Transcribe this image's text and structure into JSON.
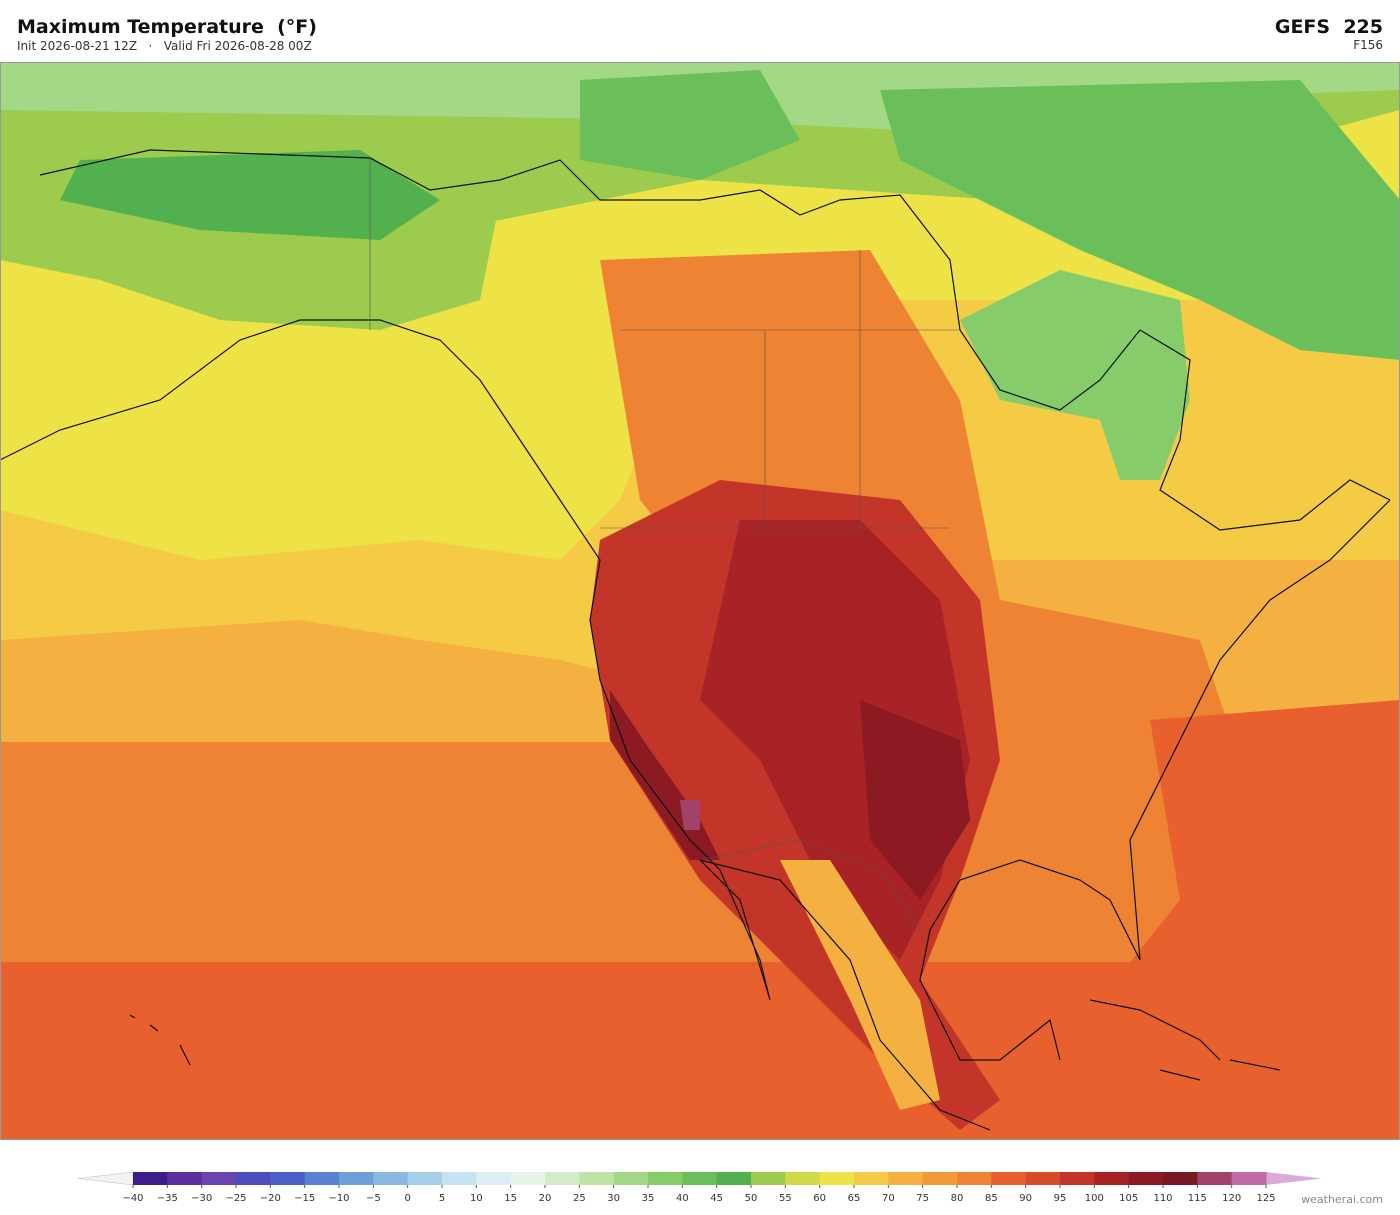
{
  "header": {
    "title": "Maximum Temperature  (°F)",
    "init": "Init 2026-08-21 12Z",
    "separator": "·",
    "valid": "Valid Fri 2026-08-28 00Z",
    "model": "GEFS  225",
    "forecast_hour": "F156"
  },
  "colorbar": {
    "ticks": [
      {
        "value": -40,
        "label": "−40"
      },
      {
        "value": -35,
        "label": "−35"
      },
      {
        "value": -30,
        "label": "−30"
      },
      {
        "value": -25,
        "label": "−25"
      },
      {
        "value": -20,
        "label": "−20"
      },
      {
        "value": -15,
        "label": "−15"
      },
      {
        "value": -10,
        "label": "−10"
      },
      {
        "value": -5,
        "label": "−5"
      },
      0,
      5,
      10,
      15,
      20,
      25,
      30,
      35,
      40,
      45,
      50,
      55,
      60,
      65,
      70,
      75,
      80,
      85,
      90,
      95,
      100,
      105,
      110,
      115,
      120,
      125
    ],
    "colors": [
      "#3b1e8c",
      "#5a2e9e",
      "#6a45b0",
      "#4b4cc0",
      "#4a5fc8",
      "#5a80d0",
      "#6f9fd8",
      "#8ab8e0",
      "#a6cfea",
      "#c4e2f0",
      "#dceff4",
      "#e6f4e8",
      "#d2ecc8",
      "#bfe3a6",
      "#a3d886",
      "#86cc6b",
      "#6abf5a",
      "#52b04f",
      "#9ccb4e",
      "#cfd94a",
      "#ede346",
      "#f5cb45",
      "#f4b040",
      "#f29a3a",
      "#ee8334",
      "#e8602d",
      "#d94a2a",
      "#c23528",
      "#a82325",
      "#8c1a22",
      "#781a24",
      "#a0426a",
      "#c06aa6"
    ],
    "under_color": "#f2f2f2",
    "over_color": "#dcaad8"
  },
  "footer": {
    "credit": "weatherai.com"
  }
}
